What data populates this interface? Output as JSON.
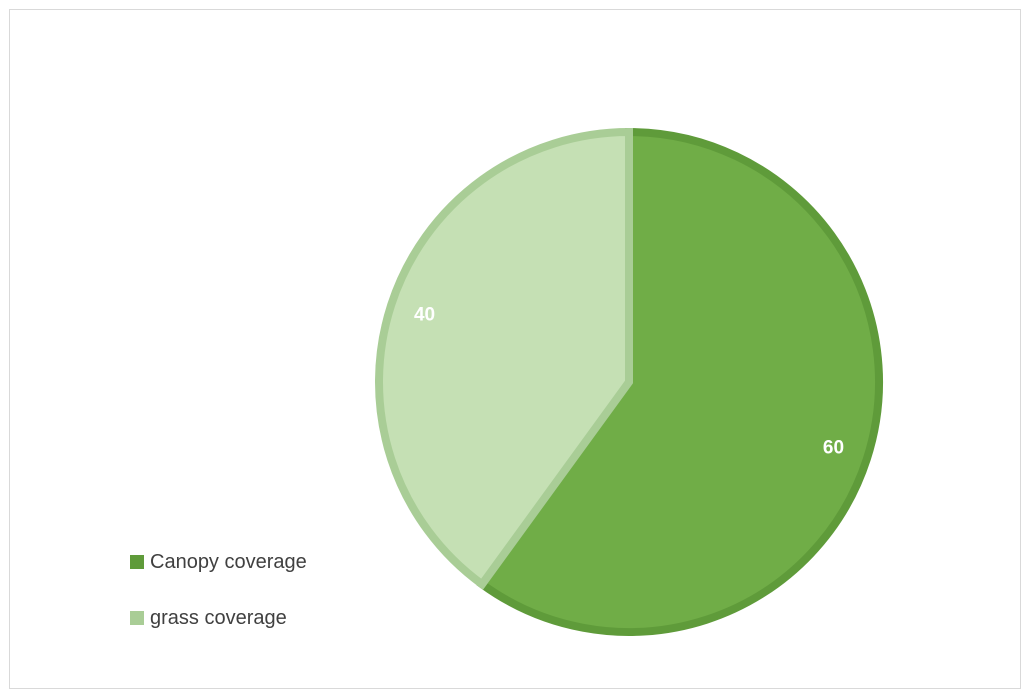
{
  "chart_data": {
    "type": "pie",
    "title": "",
    "slices": [
      {
        "name": "Canopy coverage",
        "value": 60,
        "label": "60",
        "color": "#70ad47",
        "border": "#5f9b3a"
      },
      {
        "name": "grass coverage",
        "value": 40,
        "label": "40",
        "color": "#c5e0b4",
        "border": "#a9cd96"
      }
    ],
    "legend_position": "bottom-left"
  }
}
